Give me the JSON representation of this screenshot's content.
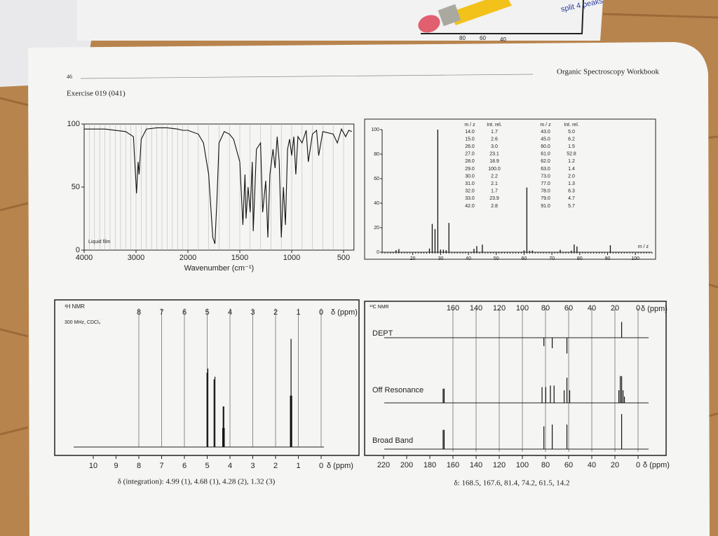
{
  "header": {
    "page": "46",
    "book": "Organic Spectroscopy Workbook",
    "exercise": "Exercise 019 (041)",
    "background_labels": [
      "80",
      "60",
      "40"
    ],
    "handwriting": "split 4 peaks"
  },
  "chart_data": [
    {
      "type": "ir",
      "annotation": "Liquid film",
      "x_label": "Wavenumber (cm⁻¹)",
      "xlim": [
        4000,
        400
      ],
      "xticks": [
        4000,
        3000,
        2000,
        1500,
        1000,
        500
      ],
      "ylim": [
        0,
        100
      ],
      "yticks": [
        0,
        50,
        100
      ],
      "grid": true,
      "x": [
        4000,
        3600,
        3200,
        3050,
        2990,
        2960,
        2940,
        2900,
        2800,
        2600,
        2400,
        2200,
        2100,
        2000,
        1900,
        1850,
        1800,
        1760,
        1740,
        1720,
        1700,
        1650,
        1600,
        1560,
        1500,
        1470,
        1450,
        1440,
        1420,
        1400,
        1380,
        1370,
        1340,
        1300,
        1280,
        1250,
        1230,
        1210,
        1180,
        1160,
        1140,
        1120,
        1100,
        1080,
        1060,
        1040,
        1020,
        1000,
        980,
        960,
        940,
        900,
        860,
        840,
        800,
        760,
        740,
        700,
        600,
        560,
        520,
        480,
        450,
        420
      ],
      "values": [
        96,
        96,
        94,
        90,
        45,
        70,
        60,
        88,
        96,
        97,
        97,
        96,
        95,
        95,
        92,
        85,
        60,
        10,
        5,
        40,
        85,
        94,
        92,
        88,
        70,
        20,
        60,
        25,
        50,
        30,
        70,
        15,
        80,
        85,
        30,
        55,
        10,
        60,
        80,
        65,
        90,
        70,
        10,
        50,
        20,
        80,
        88,
        75,
        90,
        60,
        90,
        85,
        95,
        70,
        92,
        95,
        75,
        94,
        92,
        85,
        96,
        90,
        95,
        94
      ]
    },
    {
      "type": "mass",
      "x_label": "m / z",
      "xlim": [
        9,
        106
      ],
      "xticks": [
        20,
        30,
        40,
        50,
        60,
        70,
        80,
        90,
        100
      ],
      "ylim": [
        0,
        100
      ],
      "yticks": [
        0,
        20,
        40,
        60,
        80,
        100
      ],
      "table_headers": [
        "m / z",
        "Int. rel.",
        "m / z",
        "Int. rel."
      ],
      "x": [
        14,
        15,
        26,
        27,
        28,
        29,
        30,
        31,
        32,
        33,
        42,
        43,
        45,
        60,
        61,
        62,
        63,
        73,
        77,
        78,
        79,
        91
      ],
      "values": [
        1.7,
        2.6,
        3.0,
        23.1,
        18.9,
        100,
        2.2,
        2.1,
        1.7,
        23.9,
        2.8,
        5.0,
        6.2,
        1.5,
        52.8,
        1.2,
        1.4,
        2.0,
        1.3,
        6.3,
        4.7,
        5.7
      ],
      "x_labels": [
        "14.0",
        "15.0",
        "26.0",
        "27.0",
        "28.0",
        "29.0",
        "30.0",
        "31.0",
        "32.0",
        "33.0",
        "42.0",
        "43.0",
        "45.0",
        "60.0",
        "61.0",
        "62.0",
        "63.0",
        "73.0",
        "77.0",
        "78.0",
        "79.0",
        "91.0"
      ],
      "value_labels": [
        "1.7",
        "2.6",
        "3.0",
        "23.1",
        "18.9",
        "100.0",
        "2.2",
        "2.1",
        "1.7",
        "23.9",
        "2.8",
        "5.0",
        "6.2",
        "1.5",
        "52.8",
        "1.2",
        "1.4",
        "2.0",
        "1.3",
        "6.3",
        "4.7",
        "5.7"
      ]
    },
    {
      "type": "hnmr",
      "title": "¹H NMR",
      "subtitle": "300 MHz, CDCl₃",
      "x_label": "δ (ppm)",
      "top_label": "δ (ppm)",
      "xlim": [
        10,
        0
      ],
      "xticks": [
        10,
        9,
        8,
        7,
        6,
        5,
        4,
        3,
        2,
        1,
        0
      ],
      "top_ticks": [
        8,
        7,
        6,
        5,
        4,
        3,
        2,
        1,
        0
      ],
      "caption": "δ (integration): 4.99 (1), 4.68 (1), 4.28 (2), 1.32 (3)",
      "peaks_ppm": [
        5.01,
        4.97,
        4.7,
        4.66,
        4.32,
        4.3,
        4.27,
        4.25,
        1.35,
        1.32,
        1.29
      ],
      "peak_heights": [
        55,
        58,
        50,
        52,
        14,
        30,
        30,
        14,
        38,
        80,
        38
      ]
    },
    {
      "type": "cnmr",
      "title": "¹³C NMR",
      "x_label": "δ (ppm)",
      "top_label": "δ (ppm)",
      "xlim": [
        220,
        0
      ],
      "xticks": [
        220,
        200,
        180,
        160,
        140,
        120,
        100,
        80,
        60,
        40,
        20,
        0
      ],
      "top_ticks": [
        160,
        140,
        120,
        100,
        80,
        60,
        40,
        20,
        0
      ],
      "caption": "δ: 168.5, 167.6, 81.4, 74.2, 61.5, 14.2",
      "traces": [
        {
          "name": "DEPT",
          "peaks_ppm": [
            81.4,
            74.2,
            61.5,
            14.2
          ],
          "peak_heights": [
            -40,
            -50,
            -75,
            75
          ]
        },
        {
          "name": "Off Resonance",
          "peaks_ppm": [
            168.5,
            167.6,
            83.0,
            79.8,
            75.8,
            72.6,
            63.9,
            61.5,
            59.1,
            16.6,
            15.4,
            14.2,
            13.0,
            11.8
          ],
          "peak_heights": [
            45,
            45,
            50,
            50,
            55,
            55,
            40,
            80,
            40,
            40,
            85,
            85,
            40,
            20
          ]
        },
        {
          "name": "Broad Band",
          "peaks_ppm": [
            168.5,
            167.6,
            81.4,
            74.2,
            61.5,
            14.2
          ],
          "peak_heights": [
            55,
            55,
            65,
            70,
            70,
            100
          ]
        }
      ]
    }
  ]
}
